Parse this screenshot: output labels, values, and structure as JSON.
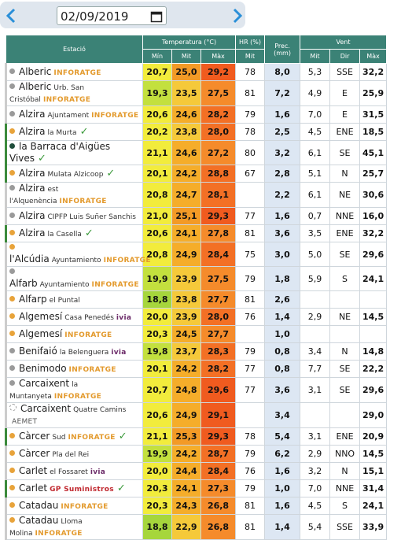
{
  "header": {
    "date": "02/09/2019"
  },
  "table": {
    "group_headers": [
      "Estació",
      "Temperatura (°C)",
      "HR (%)",
      "Prec. (mm)",
      "Vent"
    ],
    "sub_headers": [
      "Mín",
      "Mit",
      "Màx",
      "Mit",
      "Mit",
      "Dir",
      "Màx"
    ],
    "rows": [
      {
        "dot": "#9a9a9a",
        "verified": false,
        "name": "Alberic",
        "detail": null,
        "brand": "INFORATGE",
        "values": [
          "20,7",
          "25,0",
          "29,2",
          "78",
          "8,0",
          "5,3",
          "SSE",
          "32,2"
        ]
      },
      {
        "dot": "#9a9a9a",
        "verified": false,
        "name": "Alberic",
        "detail": "Urb. San Cristóbal",
        "brand": "INFORATGE",
        "values": [
          "19,3",
          "23,5",
          "27,5",
          "81",
          "7,2",
          "4,9",
          "E",
          "25,9"
        ]
      },
      {
        "dot": "#9a9a9a",
        "verified": false,
        "name": "Alzira",
        "detail": "Ajuntament",
        "brand": "INFORATGE",
        "values": [
          "20,6",
          "24,6",
          "28,2",
          "79",
          "1,6",
          "7,0",
          "E",
          "31,5"
        ]
      },
      {
        "dot": "#e8a33a",
        "verified": true,
        "name": "Alzira",
        "detail": "la Murta",
        "brand": null,
        "values": [
          "20,2",
          "23,8",
          "28,0",
          "78",
          "2,5",
          "4,5",
          "ENE",
          "18,5"
        ]
      },
      {
        "dot": "#1e4d3a",
        "verified": true,
        "name": "la Barraca d'Aigües Vives",
        "detail": null,
        "brand": null,
        "values": [
          "21,1",
          "24,6",
          "27,2",
          "80",
          "3,2",
          "6,1",
          "SE",
          "45,1"
        ]
      },
      {
        "dot": "#e8a33a",
        "verified": true,
        "name": "Alzira",
        "detail": "Mulata Alzicoop",
        "brand": null,
        "values": [
          "20,1",
          "24,2",
          "28,8",
          "67",
          "2,8",
          "5,1",
          "N",
          "25,7"
        ]
      },
      {
        "dot": "#9a9a9a",
        "verified": false,
        "name": "Alzira",
        "detail": "est l'Alquenència",
        "brand": "INFORATGE",
        "values": [
          "20,8",
          "24,7",
          "28,1",
          null,
          "2,2",
          "6,1",
          "NE",
          "30,6"
        ]
      },
      {
        "dot": "#9a9a9a",
        "verified": false,
        "name": "Alzira",
        "detail": "CIPFP Luis Suñer Sanchis",
        "brand": null,
        "values": [
          "21,0",
          "25,1",
          "29,3",
          "77",
          "1,6",
          "0,7",
          "NNE",
          "16,0"
        ]
      },
      {
        "dot": "#e8a33a",
        "verified": true,
        "name": "Alzira",
        "detail": "la Casella",
        "brand": null,
        "values": [
          "20,6",
          "24,1",
          "27,8",
          "81",
          "3,6",
          "3,5",
          "ENE",
          "32,2"
        ]
      },
      {
        "dot": "#e8a33a",
        "verified": false,
        "name": "l'Alcúdia",
        "detail": "Ayuntamiento",
        "brand": "INFORATGE",
        "values": [
          "20,8",
          "24,9",
          "28,4",
          "75",
          "3,0",
          "5,0",
          "SE",
          "29,6"
        ]
      },
      {
        "dot": "#9a9a9a",
        "verified": false,
        "name": "Alfarb",
        "detail": "Ayuntamiento",
        "brand": "INFORATGE",
        "values": [
          "19,9",
          "23,9",
          "27,5",
          "79",
          "1,8",
          "5,9",
          "S",
          "24,1"
        ]
      },
      {
        "dot": "#e8a33a",
        "verified": false,
        "name": "Alfarp",
        "detail": "el Puntal",
        "brand": null,
        "values": [
          "18,8",
          "23,8",
          "27,7",
          "81",
          "2,6",
          null,
          null,
          null
        ]
      },
      {
        "dot": "#e8a33a",
        "verified": false,
        "name": "Algemesí",
        "detail": "Casa Penedés",
        "brand": "ivia",
        "values": [
          "20,0",
          "23,9",
          "28,0",
          "76",
          "1,4",
          "2,9",
          "NE",
          "14,5"
        ]
      },
      {
        "dot": "#e8a33a",
        "verified": false,
        "name": "Algemesí",
        "detail": null,
        "brand": "INFORATGE",
        "values": [
          "20,3",
          "24,5",
          "27,7",
          null,
          "1,0",
          null,
          null,
          null
        ]
      },
      {
        "dot": "#9a9a9a",
        "verified": false,
        "name": "Benifaió",
        "detail": "la Belenguera",
        "brand": "ivia",
        "values": [
          "19,8",
          "23,7",
          "28,3",
          "79",
          "0,8",
          "3,4",
          "N",
          "14,8"
        ]
      },
      {
        "dot": "#9a9a9a",
        "verified": false,
        "name": "Benimodo",
        "detail": null,
        "brand": "INFORATGE",
        "values": [
          "20,1",
          "24,2",
          "28,2",
          "77",
          "0,8",
          "7,7",
          "SE",
          "22,2"
        ]
      },
      {
        "dot": "#9a9a9a",
        "verified": false,
        "name": "Carcaixent",
        "detail": "la Muntanyeta",
        "brand": "INFORATGE",
        "values": [
          "20,7",
          "24,8",
          "29,6",
          "77",
          "3,6",
          "3,1",
          "SE",
          "29,6"
        ]
      },
      {
        "dot": "#ffffff",
        "verified": false,
        "name": "Carcaixent",
        "detail": "Quatre Camins",
        "brand": "AEMET",
        "values": [
          "20,6",
          "24,9",
          "29,1",
          null,
          "3,4",
          null,
          null,
          "29,0"
        ]
      },
      {
        "dot": "#e8a33a",
        "verified": true,
        "name": "Càrcer",
        "detail": "Sud",
        "brand": "INFORATGE",
        "values": [
          "21,1",
          "25,3",
          "29,3",
          "78",
          "5,4",
          "3,1",
          "ENE",
          "20,9"
        ]
      },
      {
        "dot": "#e8a33a",
        "verified": false,
        "name": "Càrcer",
        "detail": "Pla del Rei",
        "brand": null,
        "values": [
          "19,9",
          "24,2",
          "28,7",
          "79",
          "6,2",
          "2,9",
          "NNO",
          "14,5"
        ]
      },
      {
        "dot": "#e8a33a",
        "verified": false,
        "name": "Carlet",
        "detail": "el Fossaret",
        "brand": "ivia",
        "values": [
          "20,0",
          "24,4",
          "28,4",
          "76",
          "1,6",
          "3,2",
          "N",
          "15,1"
        ]
      },
      {
        "dot": "#e8a33a",
        "verified": true,
        "name": "Carlet",
        "detail": null,
        "brand": "GP Suministros",
        "values": [
          "20,3",
          "24,1",
          "27,3",
          "79",
          "1,0",
          "7,0",
          "NNE",
          "31,4"
        ]
      },
      {
        "dot": "#e8a33a",
        "verified": false,
        "name": "Catadau",
        "detail": null,
        "brand": "INFORATGE",
        "values": [
          "20,3",
          "24,3",
          "26,8",
          "81",
          "1,6",
          "4,5",
          "S",
          "24,1"
        ]
      },
      {
        "dot": "#e8a33a",
        "verified": false,
        "name": "Catadau",
        "detail": "Lloma Molina",
        "brand": "INFORATGE",
        "values": [
          "18,8",
          "22,9",
          "26,8",
          "81",
          "1,4",
          "5,4",
          "SSE",
          "33,9"
        ]
      }
    ]
  }
}
